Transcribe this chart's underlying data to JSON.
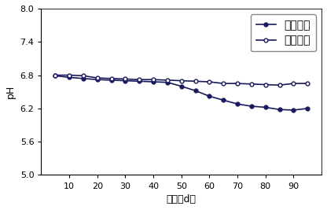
{
  "x_ticks": [
    10,
    20,
    30,
    40,
    50,
    60,
    70,
    80,
    90
  ],
  "series1_label": "试验处理",
  "series2_label": "自然堆肥",
  "series1_x": [
    5,
    10,
    15,
    20,
    25,
    30,
    35,
    40,
    45,
    50,
    55,
    60,
    65,
    70,
    75,
    80,
    85,
    90,
    95
  ],
  "series1_y": [
    6.79,
    6.76,
    6.74,
    6.72,
    6.71,
    6.7,
    6.69,
    6.68,
    6.67,
    6.6,
    6.52,
    6.42,
    6.35,
    6.28,
    6.24,
    6.22,
    6.18,
    6.17,
    6.2
  ],
  "series2_x": [
    5,
    10,
    15,
    20,
    25,
    30,
    35,
    40,
    45,
    50,
    55,
    60,
    65,
    70,
    75,
    80,
    85,
    90,
    95
  ],
  "series2_y": [
    6.8,
    6.8,
    6.79,
    6.75,
    6.74,
    6.73,
    6.72,
    6.72,
    6.71,
    6.7,
    6.69,
    6.68,
    6.65,
    6.65,
    6.64,
    6.63,
    6.62,
    6.65,
    6.65
  ],
  "xlabel": "时间（d）",
  "ylabel": "pH",
  "ylim": [
    5.0,
    8.0
  ],
  "xlim": [
    0,
    100
  ],
  "yticks": [
    5.0,
    5.6,
    6.2,
    6.8,
    7.4,
    8.0
  ],
  "line_color": "#1a1a5e",
  "bg_color": "#ffffff"
}
